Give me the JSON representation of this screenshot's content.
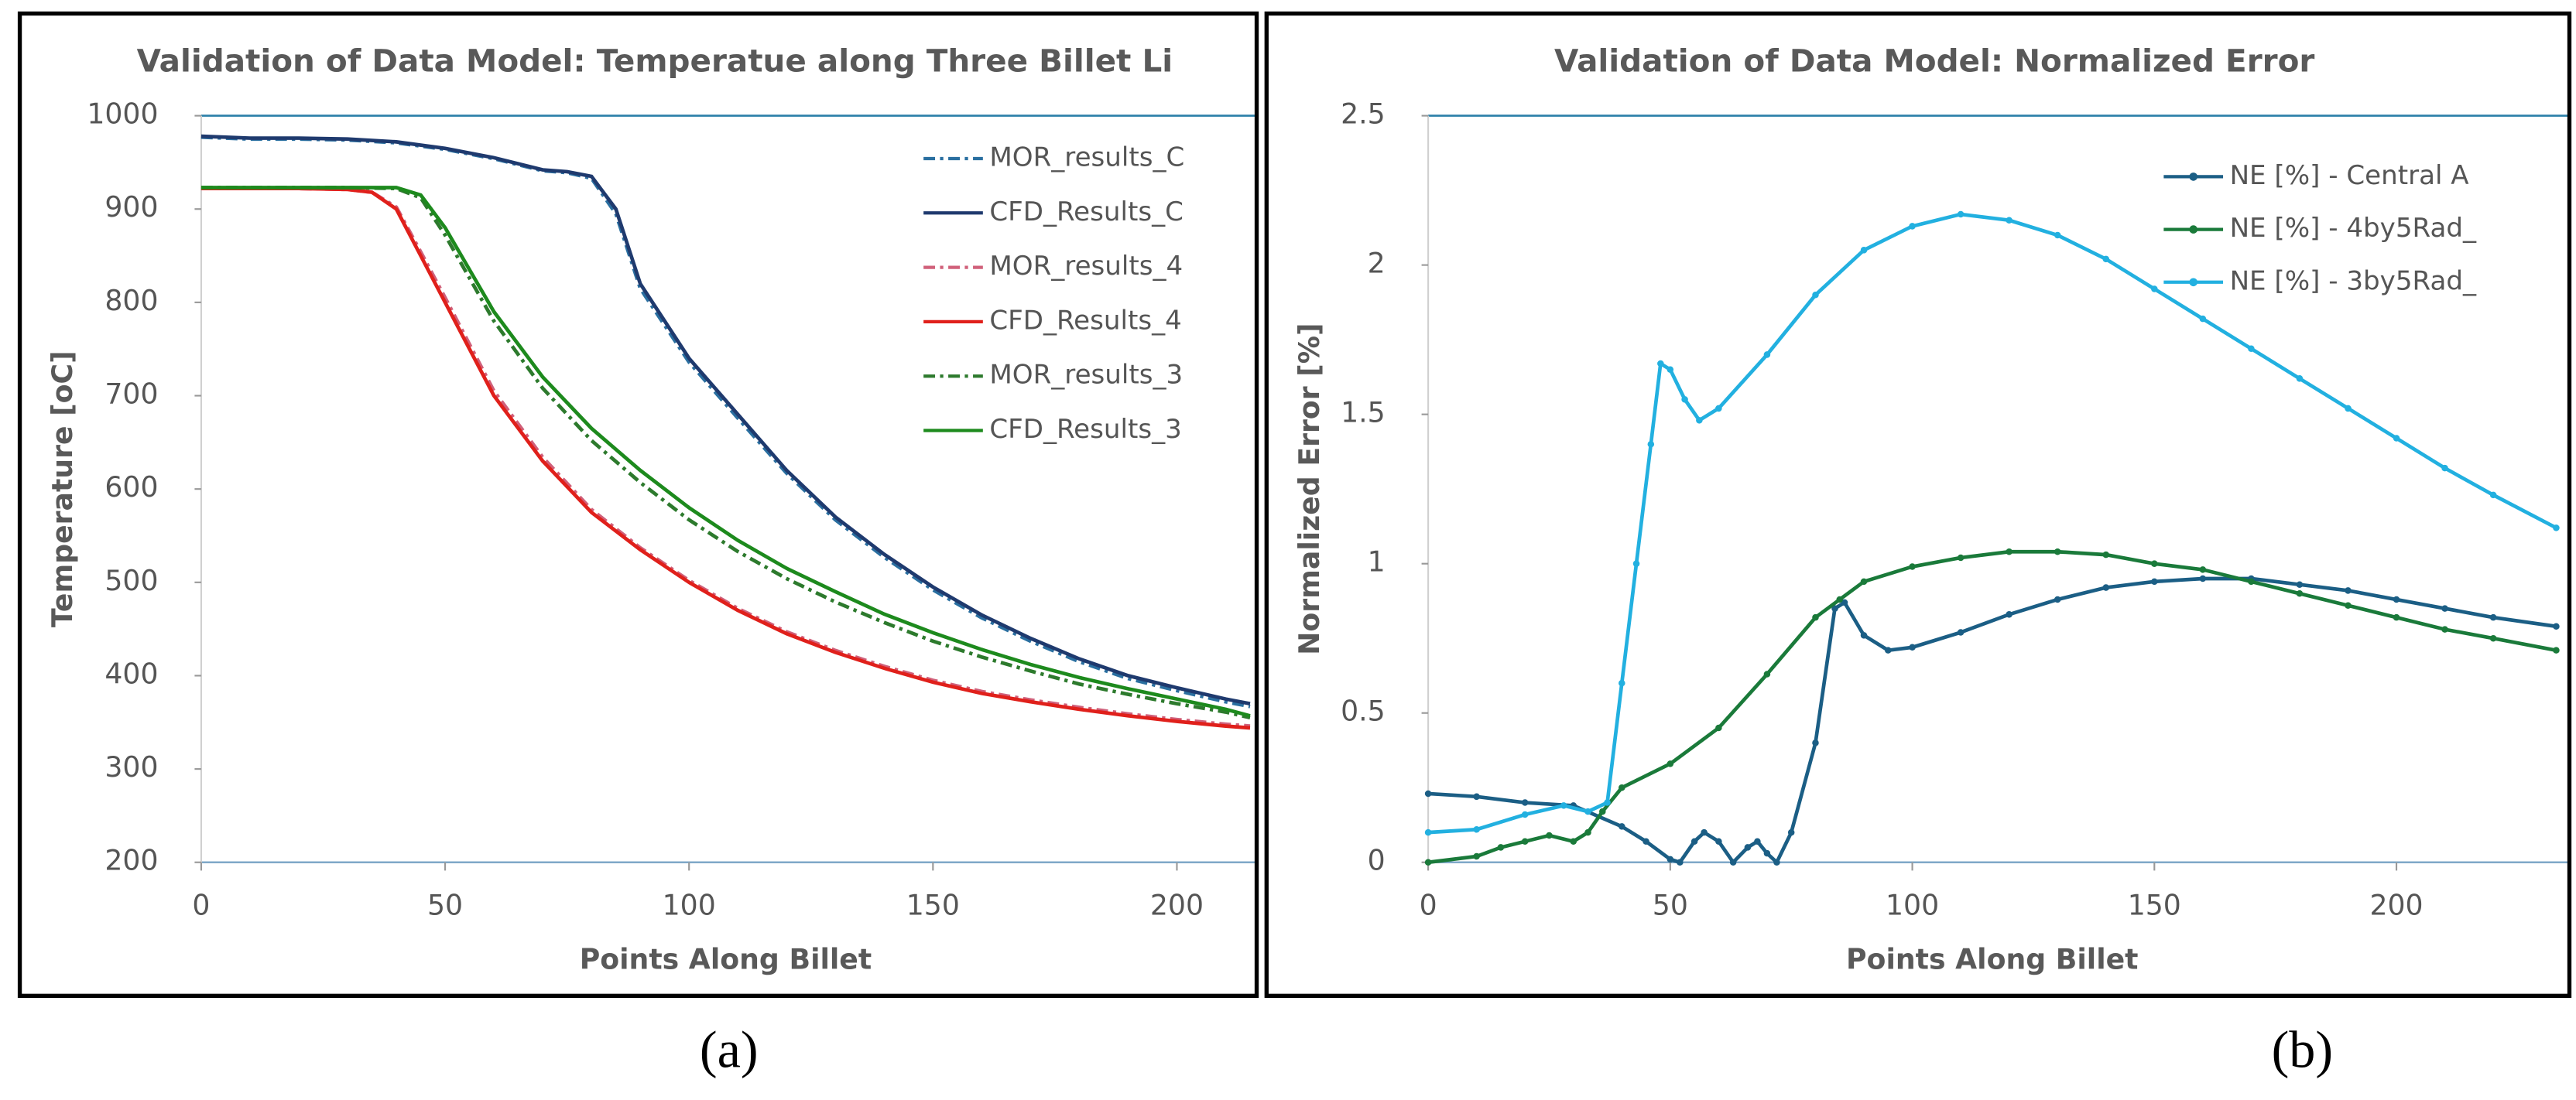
{
  "chart_data": [
    {
      "type": "line",
      "title": "Validation of Data Model: Temperatue along Three Billet Li",
      "x_label": "Points Along Billet",
      "y_label": "Temperature [oC]",
      "panel_label": "(a)",
      "xlim": [
        0,
        215
      ],
      "xticks": [
        0,
        50,
        100,
        150,
        200
      ],
      "ylim": [
        200,
        1000
      ],
      "yticks": [
        200,
        300,
        400,
        500,
        600,
        700,
        800,
        900,
        1000
      ],
      "legend": "upper right",
      "series": [
        {
          "name": "MOR_results_C",
          "color": "#2a6fa0",
          "dash": "dashdot",
          "x": [
            0,
            10,
            20,
            30,
            40,
            50,
            60,
            70,
            75,
            80,
            85,
            90,
            100,
            110,
            120,
            130,
            140,
            150,
            160,
            170,
            180,
            190,
            200,
            210,
            215
          ],
          "values": [
            977,
            975,
            975,
            974,
            971,
            964,
            954,
            941,
            939,
            933,
            895,
            815,
            736,
            676,
            617,
            567,
            527,
            492,
            462,
            437,
            415,
            397,
            384,
            372,
            367
          ]
        },
        {
          "name": "CFD_Results_C",
          "color": "#1f3a6e",
          "dash": "solid",
          "x": [
            0,
            10,
            20,
            30,
            40,
            50,
            60,
            70,
            75,
            80,
            85,
            90,
            100,
            110,
            120,
            130,
            140,
            150,
            160,
            170,
            180,
            190,
            200,
            210,
            215
          ],
          "values": [
            978,
            976,
            976,
            975,
            972,
            965,
            955,
            942,
            940,
            935,
            900,
            820,
            740,
            680,
            620,
            570,
            530,
            495,
            465,
            440,
            418,
            400,
            387,
            375,
            370
          ]
        },
        {
          "name": "MOR_results_4",
          "color": "#d0607a",
          "dash": "dashdot",
          "x": [
            0,
            10,
            20,
            30,
            35,
            40,
            45,
            50,
            60,
            70,
            80,
            90,
            100,
            110,
            120,
            130,
            140,
            150,
            160,
            170,
            180,
            190,
            200,
            210,
            215
          ],
          "values": [
            922,
            922,
            922,
            921,
            918,
            902,
            854,
            805,
            705,
            634,
            578,
            537,
            502,
            472,
            447,
            427,
            410,
            395,
            383,
            374,
            366,
            359,
            353,
            348,
            346
          ]
        },
        {
          "name": "CFD_Results_4",
          "color": "#e0201b",
          "dash": "solid",
          "x": [
            0,
            10,
            20,
            30,
            35,
            40,
            45,
            50,
            60,
            70,
            80,
            90,
            100,
            110,
            120,
            130,
            140,
            150,
            160,
            170,
            180,
            190,
            200,
            210,
            215
          ],
          "values": [
            922,
            922,
            922,
            921,
            918,
            900,
            850,
            800,
            700,
            630,
            575,
            535,
            500,
            470,
            445,
            425,
            408,
            393,
            381,
            372,
            364,
            357,
            351,
            346,
            344
          ]
        },
        {
          "name": "MOR_results_3",
          "color": "#2d7a2d",
          "dash": "dashdot",
          "x": [
            0,
            10,
            20,
            30,
            40,
            45,
            50,
            60,
            70,
            80,
            90,
            100,
            110,
            120,
            130,
            140,
            150,
            160,
            170,
            180,
            190,
            200,
            210,
            215
          ],
          "values": [
            923,
            923,
            923,
            923,
            922,
            912,
            872,
            780,
            708,
            652,
            607,
            567,
            533,
            504,
            479,
            457,
            437,
            420,
            405,
            391,
            380,
            370,
            361,
            355
          ]
        },
        {
          "name": "CFD_Results_3",
          "color": "#1d8a1d",
          "dash": "solid",
          "x": [
            0,
            10,
            20,
            30,
            40,
            45,
            50,
            60,
            70,
            80,
            90,
            100,
            110,
            120,
            130,
            140,
            150,
            160,
            170,
            180,
            190,
            200,
            210,
            215
          ],
          "values": [
            923,
            923,
            923,
            923,
            923,
            915,
            880,
            790,
            720,
            665,
            620,
            580,
            545,
            515,
            490,
            466,
            446,
            428,
            412,
            398,
            386,
            375,
            364,
            357
          ]
        }
      ]
    },
    {
      "type": "line",
      "title": "Validation of Data Model: Normalized Error",
      "x_label": "Points Along Billet",
      "y_label": "Normalized Error [%]",
      "panel_label": "(b)",
      "xlim": [
        0,
        233
      ],
      "xticks": [
        0,
        50,
        100,
        150,
        200
      ],
      "ylim": [
        0,
        2.5
      ],
      "yticks": [
        0,
        0.5,
        1,
        1.5,
        2,
        2.5
      ],
      "legend": "upper right",
      "markers": true,
      "series": [
        {
          "name": "NE [%] - Central A",
          "color": "#1b5e85",
          "dash": "solid",
          "x": [
            0,
            10,
            20,
            30,
            40,
            45,
            50,
            52,
            55,
            57,
            60,
            63,
            66,
            68,
            70,
            72,
            75,
            80,
            84,
            86,
            90,
            95,
            100,
            110,
            120,
            130,
            140,
            150,
            160,
            170,
            180,
            190,
            200,
            210,
            220,
            233
          ],
          "values": [
            0.23,
            0.22,
            0.2,
            0.19,
            0.12,
            0.07,
            0.01,
            0,
            0.07,
            0.1,
            0.07,
            0,
            0.05,
            0.07,
            0.03,
            0,
            0.1,
            0.4,
            0.85,
            0.87,
            0.76,
            0.71,
            0.72,
            0.77,
            0.83,
            0.88,
            0.92,
            0.94,
            0.95,
            0.95,
            0.93,
            0.91,
            0.88,
            0.85,
            0.82,
            0.79
          ]
        },
        {
          "name": "NE [%] - 4by5Rad_",
          "color": "#1a7a3a",
          "dash": "solid",
          "x": [
            0,
            10,
            15,
            20,
            25,
            30,
            33,
            36,
            40,
            50,
            60,
            70,
            80,
            85,
            90,
            100,
            110,
            120,
            130,
            140,
            150,
            160,
            170,
            180,
            190,
            200,
            210,
            220,
            233
          ],
          "values": [
            0,
            0.02,
            0.05,
            0.07,
            0.09,
            0.07,
            0.1,
            0.17,
            0.25,
            0.33,
            0.45,
            0.63,
            0.82,
            0.88,
            0.94,
            0.99,
            1.02,
            1.04,
            1.04,
            1.03,
            1,
            0.98,
            0.94,
            0.9,
            0.86,
            0.82,
            0.78,
            0.75,
            0.71
          ]
        },
        {
          "name": "NE [%] - 3by5Rad_",
          "color": "#22b0e0",
          "dash": "solid",
          "x": [
            0,
            10,
            20,
            28,
            33,
            37,
            40,
            43,
            46,
            48,
            50,
            53,
            56,
            60,
            70,
            80,
            90,
            100,
            110,
            120,
            130,
            140,
            150,
            160,
            170,
            180,
            190,
            200,
            210,
            220,
            233
          ],
          "values": [
            0.1,
            0.11,
            0.16,
            0.19,
            0.17,
            0.2,
            0.6,
            1,
            1.4,
            1.67,
            1.65,
            1.55,
            1.48,
            1.52,
            1.7,
            1.9,
            2.05,
            2.13,
            2.17,
            2.15,
            2.1,
            2.02,
            1.92,
            1.82,
            1.72,
            1.62,
            1.52,
            1.42,
            1.32,
            1.23,
            1.12
          ]
        }
      ]
    }
  ]
}
